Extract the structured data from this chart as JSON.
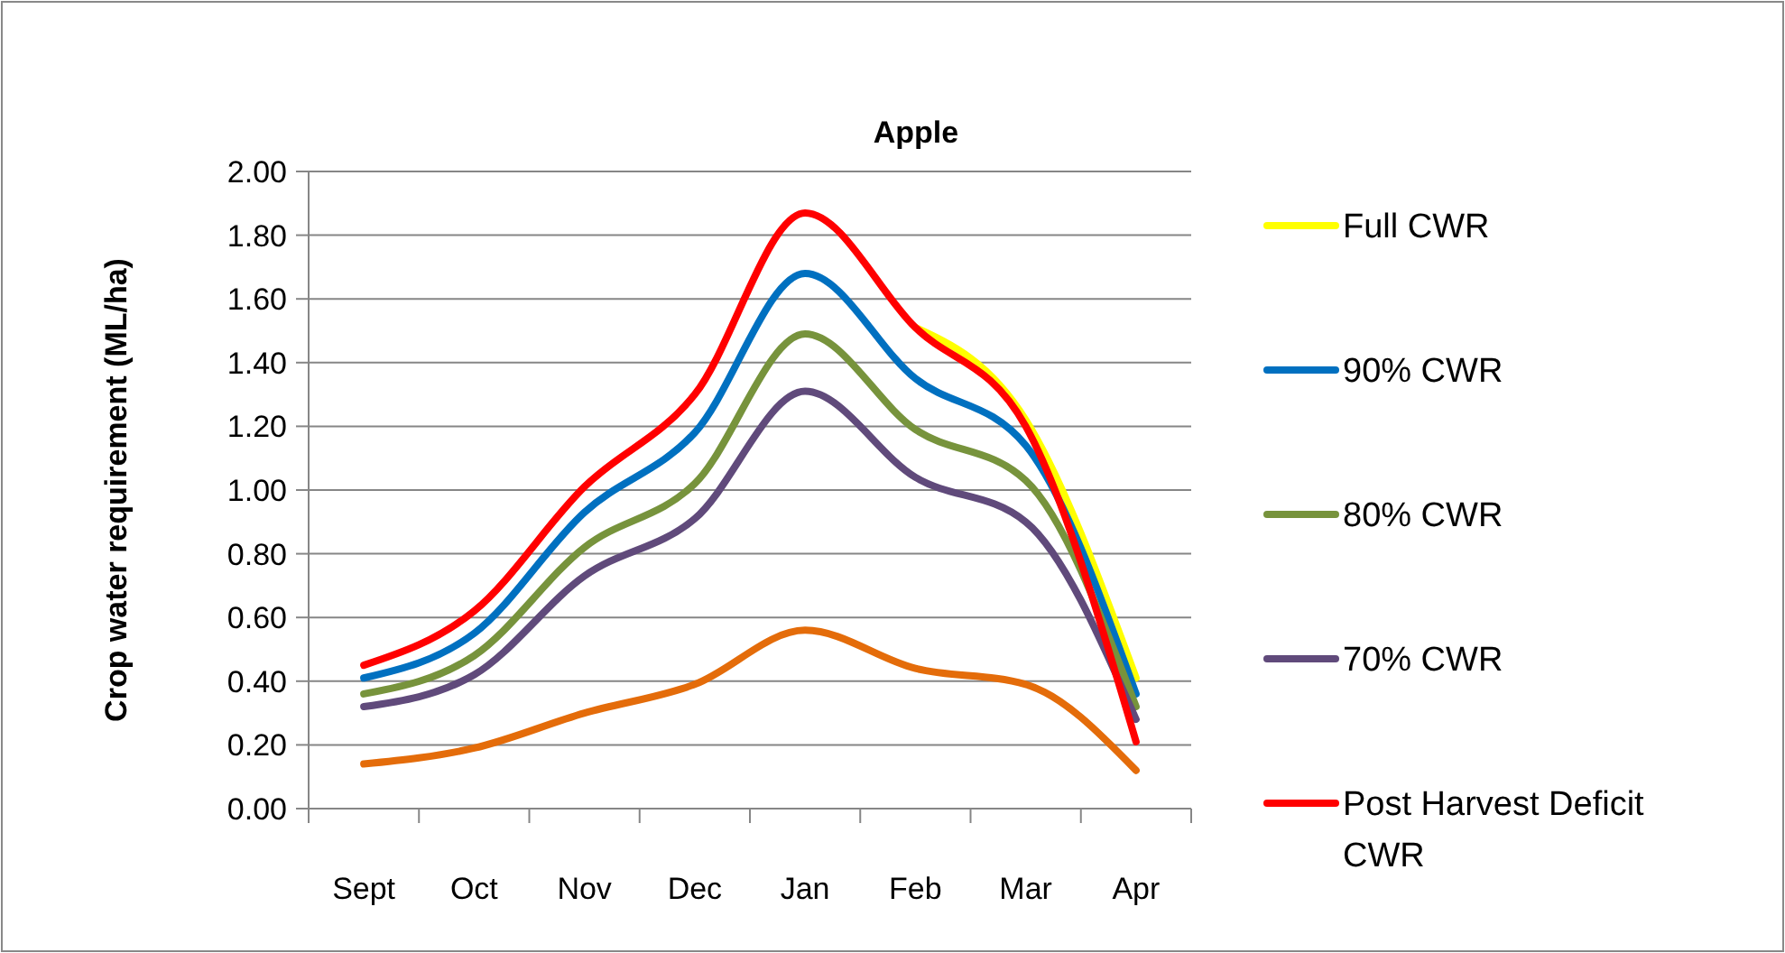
{
  "chart_data": {
    "type": "line",
    "title": "Apple",
    "ylabel": "Crop  water requirement (ML/ha)",
    "categories": [
      "Sept",
      "Oct",
      "Nov",
      "Dec",
      "Jan",
      "Feb",
      "Mar",
      "Apr"
    ],
    "series": [
      {
        "name": "Full CWR",
        "color": "#ffff00",
        "values": [
          null,
          null,
          null,
          null,
          null,
          1.51,
          1.22,
          0.41
        ]
      },
      {
        "name": "90% CWR",
        "color": "#0070c0",
        "values": [
          0.41,
          0.55,
          0.93,
          1.18,
          1.68,
          1.35,
          1.14,
          0.36
        ]
      },
      {
        "name": "80% CWR",
        "color": "#77933c",
        "values": [
          0.36,
          0.48,
          0.82,
          1.02,
          1.49,
          1.19,
          1.03,
          0.32
        ]
      },
      {
        "name": "70% CWR",
        "color": "#604a7b",
        "values": [
          0.32,
          0.42,
          0.73,
          0.91,
          1.31,
          1.04,
          0.9,
          0.28
        ]
      },
      {
        "name": "Post Harvest Deficit CWR",
        "color": "#ff0000",
        "values": [
          0.45,
          0.62,
          1.01,
          1.3,
          1.87,
          1.51,
          1.2,
          0.21
        ]
      },
      {
        "color": "#e46c0a",
        "values": [
          0.14,
          0.19,
          0.3,
          0.39,
          0.56,
          0.44,
          0.39,
          0.12
        ]
      }
    ],
    "ylim": [
      0,
      2
    ],
    "yticks": [
      {
        "value": 0,
        "label": "0.00"
      },
      {
        "value": 0.2,
        "label": "0.20"
      },
      {
        "value": 0.4,
        "label": "0.40"
      },
      {
        "value": 0.6,
        "label": "0.60"
      },
      {
        "value": 0.8,
        "label": "0.80"
      },
      {
        "value": 1,
        "label": "1.00"
      },
      {
        "value": 1.2,
        "label": "1.20"
      },
      {
        "value": 1.4,
        "label": "1.40"
      },
      {
        "value": 1.6,
        "label": "1.60"
      },
      {
        "value": 1.8,
        "label": "1.80"
      },
      {
        "value": 2,
        "label": "2.00"
      }
    ],
    "grid": "y",
    "legend": "right",
    "marker": "none",
    "line_style": "solid"
  }
}
